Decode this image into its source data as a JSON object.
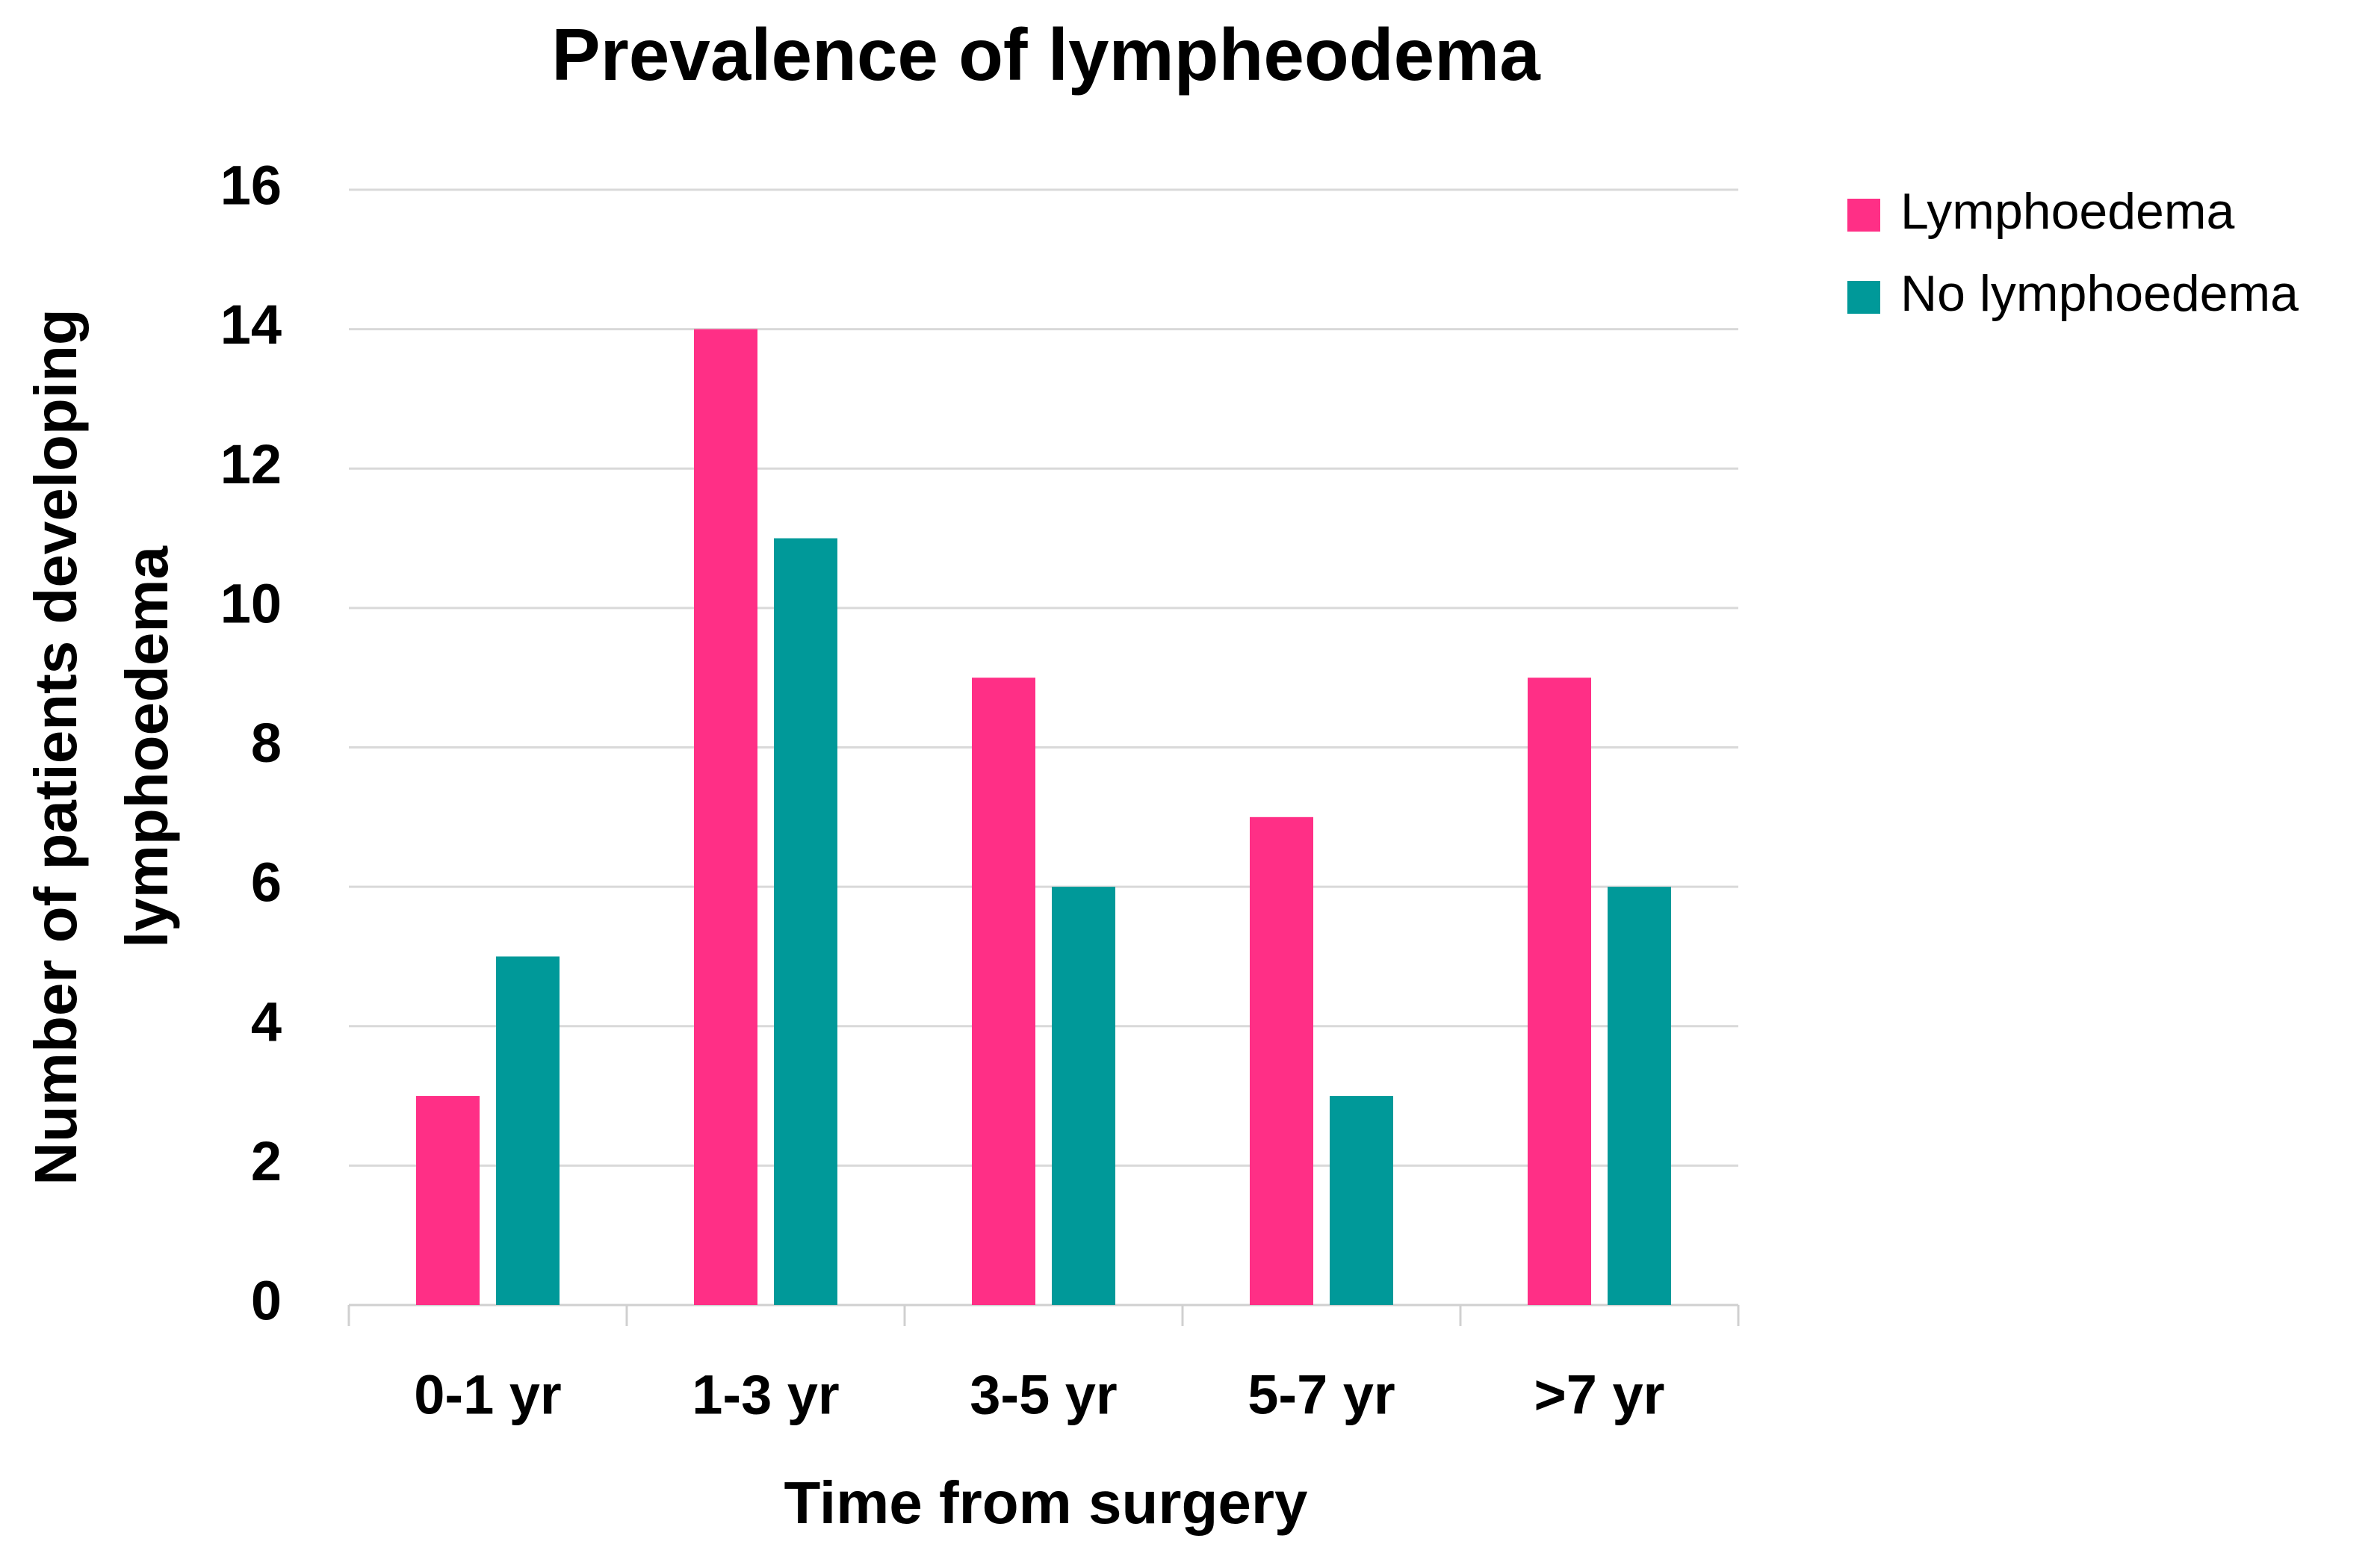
{
  "chart_data": {
    "type": "bar",
    "title": "Prevalence of lympheodema",
    "xlabel": "Time from surgery",
    "ylabel": [
      "Number of patients developing",
      "lymphoedema"
    ],
    "categories": [
      "0-1 yr",
      "1-3 yr",
      "3-5 yr",
      "5-7 yr",
      ">7 yr"
    ],
    "series": [
      {
        "name": "Lymphoedema",
        "color": "#ff2f86",
        "values": [
          3,
          14,
          9,
          7,
          9
        ]
      },
      {
        "name": "No lymphoedema",
        "color": "#009999",
        "values": [
          5,
          11,
          6,
          3,
          6
        ]
      }
    ],
    "ylim": [
      0,
      16
    ],
    "yticks": [
      0,
      2,
      4,
      6,
      8,
      10,
      12,
      14,
      16
    ],
    "grid": true,
    "legend": "right"
  }
}
